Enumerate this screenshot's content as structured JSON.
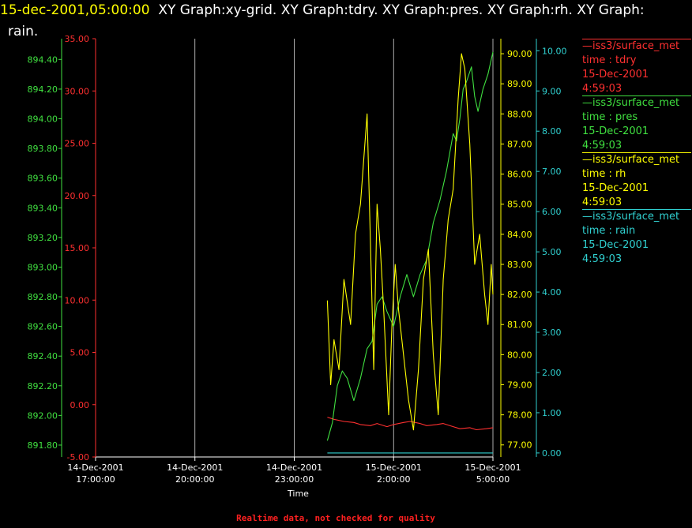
{
  "header": {
    "timestamp": "15-dec-2001,05:00:00",
    "graph_names": "XY Graph:xy-grid.  XY Graph:tdry.  XY Graph:pres.  XY Graph:rh.  XY Graph:",
    "line2": "rain."
  },
  "colors": {
    "background": "#000000",
    "tdry": "#ff3030",
    "pres": "#40e040",
    "rh": "#ffff00",
    "rain": "#30d0d0",
    "grid": "#ffffff",
    "footer": "#ff2020"
  },
  "legend": [
    {
      "source": "—iss3/surface_met",
      "var": "time : tdry",
      "date": "15-Dec-2001",
      "time": "4:59:03",
      "color": "#ff3030"
    },
    {
      "source": "—iss3/surface_met",
      "var": "time : pres",
      "date": "15-Dec-2001",
      "time": "4:59:03",
      "color": "#40e040"
    },
    {
      "source": "—iss3/surface_met",
      "var": "time : rh",
      "date": "15-Dec-2001",
      "time": "4:59:03",
      "color": "#ffff00"
    },
    {
      "source": "—iss3/surface_met",
      "var": "time : rain",
      "date": "15-Dec-2001",
      "time": "4:59:03",
      "color": "#30d0d0"
    }
  ],
  "footer": "Realtime data, not checked for quality",
  "chart_data": {
    "type": "line",
    "xlabel": "Time",
    "x_ticks": [
      {
        "date": "14-Dec-2001",
        "time": "17:00:00",
        "hour": 17
      },
      {
        "date": "14-Dec-2001",
        "time": "20:00:00",
        "hour": 20
      },
      {
        "date": "14-Dec-2001",
        "time": "23:00:00",
        "hour": 23
      },
      {
        "date": "15-Dec-2001",
        "time": "2:00:00",
        "hour": 26
      },
      {
        "date": "15-Dec-2001",
        "time": "5:00:00",
        "hour": 29
      }
    ],
    "xlim": [
      17,
      29
    ],
    "grid_x": true,
    "axes": {
      "pres": {
        "ylim": [
          891.72,
          894.54
        ],
        "ticks": [
          "891.80",
          "892.00",
          "892.20",
          "892.40",
          "892.60",
          "892.80",
          "893.00",
          "893.20",
          "893.40",
          "893.60",
          "893.80",
          "894.00",
          "894.20",
          "894.40"
        ],
        "color": "#40e040"
      },
      "tdry": {
        "ylim": [
          -5.0,
          35.0
        ],
        "ticks": [
          "-5.00",
          "0.00",
          "5.00",
          "10.00",
          "15.00",
          "20.00",
          "25.00",
          "30.00",
          "35.00"
        ],
        "color": "#ff3030"
      },
      "rh": {
        "ylim": [
          76.6,
          90.5
        ],
        "ticks": [
          "77.00",
          "78.00",
          "79.00",
          "80.00",
          "81.00",
          "82.00",
          "83.00",
          "84.00",
          "85.00",
          "86.00",
          "87.00",
          "88.00",
          "89.00",
          "90.00"
        ],
        "color": "#ffff00"
      },
      "rain": {
        "ylim": [
          -0.1,
          10.3
        ],
        "ticks": [
          "0.00",
          "1.00",
          "2.00",
          "3.00",
          "4.00",
          "5.00",
          "6.00",
          "7.00",
          "8.00",
          "9.00",
          "10.00"
        ],
        "color": "#30d0d0"
      }
    },
    "series": [
      {
        "name": "tdry",
        "axis": "tdry",
        "color": "#ff3030",
        "x": [
          24.0,
          24.2,
          24.5,
          24.8,
          25.0,
          25.3,
          25.5,
          25.8,
          26.0,
          26.3,
          26.5,
          26.8,
          27.0,
          27.3,
          27.5,
          27.8,
          28.0,
          28.3,
          28.5,
          28.8,
          29.0
        ],
        "y": [
          -1.2,
          -1.4,
          -1.6,
          -1.7,
          -1.9,
          -2.0,
          -1.8,
          -2.1,
          -1.9,
          -1.7,
          -1.6,
          -1.8,
          -2.0,
          -1.9,
          -1.8,
          -2.1,
          -2.3,
          -2.2,
          -2.4,
          -2.3,
          -2.2
        ]
      },
      {
        "name": "pres",
        "axis": "pres",
        "color": "#40e040",
        "x": [
          24.0,
          24.15,
          24.3,
          24.45,
          24.6,
          24.8,
          25.0,
          25.2,
          25.35,
          25.5,
          25.65,
          25.8,
          26.0,
          26.2,
          26.4,
          26.6,
          26.8,
          27.0,
          27.2,
          27.4,
          27.6,
          27.8,
          27.9,
          28.0,
          28.1,
          28.2,
          28.35,
          28.45,
          28.55,
          28.7,
          28.85,
          29.0
        ],
        "y": [
          891.83,
          891.95,
          892.2,
          892.3,
          892.25,
          892.1,
          892.25,
          892.45,
          892.5,
          892.75,
          892.8,
          892.7,
          892.6,
          892.8,
          892.95,
          892.8,
          892.95,
          893.05,
          893.3,
          893.45,
          893.65,
          893.9,
          893.85,
          894.0,
          894.2,
          894.25,
          894.35,
          894.15,
          894.05,
          894.2,
          894.3,
          894.45
        ]
      },
      {
        "name": "rh",
        "axis": "rh",
        "color": "#ffff00",
        "x": [
          24.0,
          24.1,
          24.2,
          24.35,
          24.5,
          24.7,
          24.85,
          25.0,
          25.2,
          25.4,
          25.5,
          25.6,
          25.7,
          25.85,
          25.95,
          26.05,
          26.15,
          26.3,
          26.45,
          26.6,
          26.75,
          26.9,
          27.05,
          27.2,
          27.35,
          27.5,
          27.65,
          27.8,
          27.95,
          28.05,
          28.15,
          28.3,
          28.45,
          28.6,
          28.75,
          28.85,
          28.95,
          29.0
        ],
        "y": [
          81.8,
          79.0,
          80.5,
          79.5,
          82.5,
          81.0,
          84.0,
          85.0,
          88.0,
          79.5,
          85.0,
          83.5,
          81.5,
          78.0,
          81.0,
          83.0,
          81.5,
          80.0,
          78.5,
          77.5,
          79.5,
          82.5,
          83.5,
          80.0,
          78.0,
          82.5,
          84.5,
          85.5,
          88.5,
          90.0,
          89.5,
          87.0,
          83.0,
          84.0,
          82.0,
          81.0,
          83.0,
          82.0
        ]
      },
      {
        "name": "rain",
        "axis": "rain",
        "color": "#30d0d0",
        "x": [
          24.0,
          29.0
        ],
        "y": [
          0.0,
          0.0
        ]
      }
    ]
  }
}
